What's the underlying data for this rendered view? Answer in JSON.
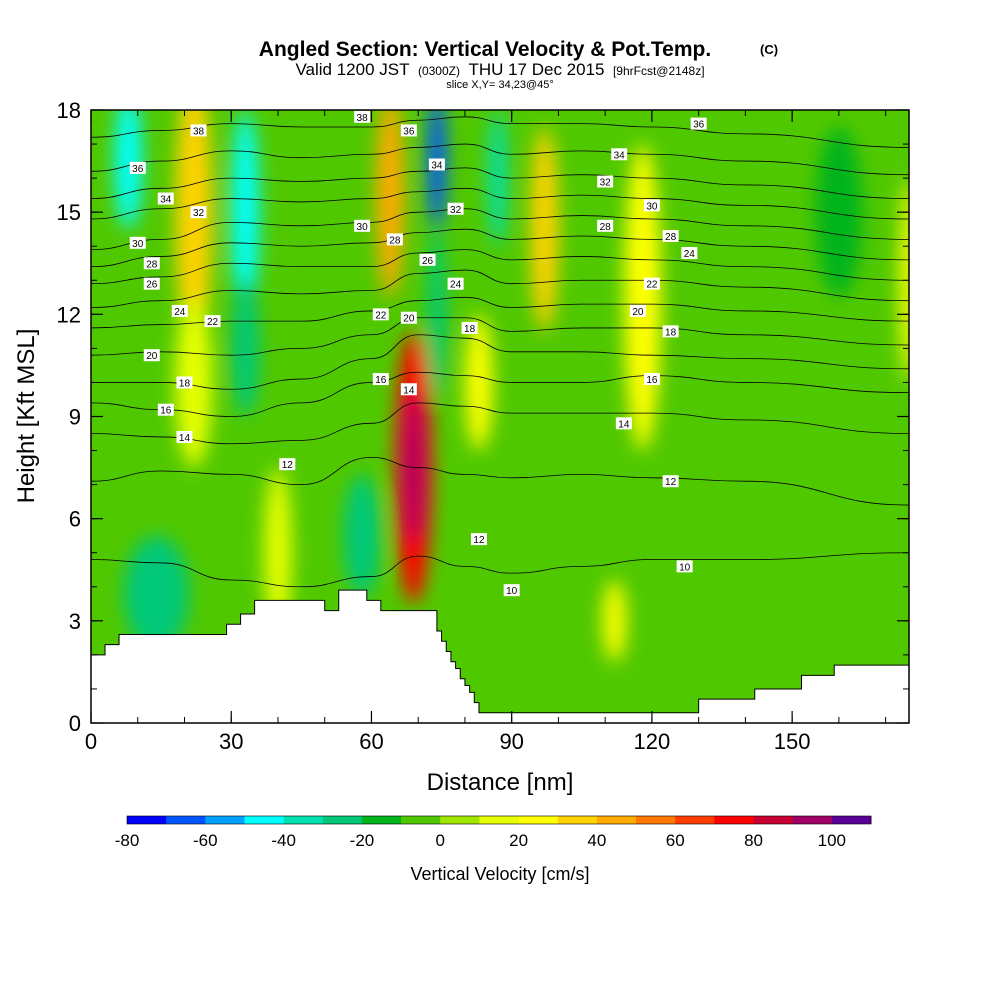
{
  "chart_data": {
    "type": "heatmap",
    "title": "Angled Section: Vertical Velocity & Pot.Temp.",
    "title_units": "(C)",
    "subtitle_prefix": "Valid 1200 JST",
    "subtitle_utc": "(0300Z)",
    "subtitle_date": "THU 17 Dec 2015",
    "subtitle_fcst": "[9hrFcst@2148z]",
    "slice_label": "slice X,Y= 34,23@45°",
    "xlabel": "Distance [nm]",
    "ylabel": "Height [Kft MSL]",
    "xlim": [
      0,
      175
    ],
    "ylim": [
      0,
      18
    ],
    "x_ticks": [
      0,
      30,
      60,
      90,
      120,
      150
    ],
    "y_ticks": [
      0,
      3,
      6,
      9,
      12,
      15,
      18
    ],
    "colorbar": {
      "title": "Vertical Velocity [cm/s]",
      "min": -80,
      "step": 10,
      "tick_labels": [
        "-80",
        "-60",
        "-40",
        "-20",
        "0",
        "20",
        "40",
        "60",
        "80",
        "100"
      ],
      "colors": [
        "#0000ff",
        "#0055ff",
        "#00a0ff",
        "#00ffff",
        "#00e0b0",
        "#00c878",
        "#00b41e",
        "#50c800",
        "#a0e600",
        "#e6ff00",
        "#ffff00",
        "#ffd200",
        "#ffaa00",
        "#ff7800",
        "#ff3c00",
        "#ff0000",
        "#c80032",
        "#a00064",
        "#5a0096"
      ]
    },
    "terrain_profile": {
      "x": [
        0,
        3,
        3,
        6,
        6,
        9,
        9,
        29,
        29,
        32,
        32,
        35,
        35,
        50,
        50,
        53,
        53,
        59,
        59,
        62,
        62,
        74,
        74,
        75,
        75,
        76,
        76,
        77,
        77,
        78,
        78,
        79,
        79,
        80,
        80,
        81,
        81,
        82,
        82,
        83,
        83,
        84,
        84,
        105,
        105,
        130,
        130,
        142,
        142,
        152,
        152,
        159,
        159,
        175
      ],
      "y_kft": [
        2.0,
        2.0,
        2.3,
        2.3,
        2.6,
        2.6,
        2.6,
        2.6,
        2.9,
        2.9,
        3.2,
        3.2,
        3.6,
        3.6,
        3.3,
        3.3,
        3.9,
        3.9,
        3.6,
        3.6,
        3.3,
        3.3,
        2.7,
        2.7,
        2.4,
        2.4,
        2.1,
        2.1,
        1.8,
        1.8,
        1.6,
        1.6,
        1.3,
        1.3,
        1.1,
        1.1,
        0.9,
        0.9,
        0.6,
        0.6,
        0.3,
        0.3,
        0.3,
        0.3,
        0.3,
        0.3,
        0.7,
        0.7,
        1.0,
        1.0,
        1.4,
        1.4,
        1.7,
        1.7
      ]
    },
    "vertical_velocity_features": [
      {
        "x": 8,
        "y_kft": 16.5,
        "x_half_width": 3,
        "y_half_height": 2,
        "value": -45
      },
      {
        "x": 22,
        "y_kft": 15,
        "x_half_width": 4,
        "y_half_height": 4,
        "value": 35
      },
      {
        "x": 22,
        "y_kft": 10,
        "x_half_width": 4,
        "y_half_height": 2.5,
        "value": 18
      },
      {
        "x": 33,
        "y_kft": 15,
        "x_half_width": 3,
        "y_half_height": 3,
        "value": -45
      },
      {
        "x": 33,
        "y_kft": 11,
        "x_half_width": 3,
        "y_half_height": 2,
        "value": -25
      },
      {
        "x": 40,
        "y_kft": 5,
        "x_half_width": 3,
        "y_half_height": 2.5,
        "value": 18
      },
      {
        "x": 14,
        "y_kft": 3.8,
        "x_half_width": 7,
        "y_half_height": 1.7,
        "value": -28
      },
      {
        "x": 58,
        "y_kft": 5.5,
        "x_half_width": 4,
        "y_half_height": 1.8,
        "value": -28
      },
      {
        "x": 64,
        "y_kft": 15.5,
        "x_half_width": 3,
        "y_half_height": 3,
        "value": 40
      },
      {
        "x": 69,
        "y_kft": 7.5,
        "x_half_width": 4,
        "y_half_height": 4,
        "value": 70
      },
      {
        "x": 69,
        "y_kft": 7.5,
        "x_half_width": 2,
        "y_half_height": 2.2,
        "value": 95
      },
      {
        "x": 74,
        "y_kft": 16.5,
        "x_half_width": 2,
        "y_half_height": 2,
        "value": -65
      },
      {
        "x": 74,
        "y_kft": 12,
        "x_half_width": 2,
        "y_half_height": 2.5,
        "value": -30
      },
      {
        "x": 83,
        "y_kft": 10,
        "x_half_width": 3,
        "y_half_height": 2,
        "value": 28
      },
      {
        "x": 87,
        "y_kft": 16,
        "x_half_width": 2,
        "y_half_height": 2,
        "value": -38
      },
      {
        "x": 97,
        "y_kft": 14.5,
        "x_half_width": 3,
        "y_half_height": 3,
        "value": 38
      },
      {
        "x": 112,
        "y_kft": 3,
        "x_half_width": 2.5,
        "y_half_height": 1.2,
        "value": 22
      },
      {
        "x": 118,
        "y_kft": 12.5,
        "x_half_width": 4,
        "y_half_height": 4.5,
        "value": 25
      },
      {
        "x": 160,
        "y_kft": 15,
        "x_half_width": 5,
        "y_half_height": 2.5,
        "value": -15
      },
      {
        "x": 175,
        "y_kft": 13,
        "x_half_width": 2,
        "y_half_height": 3,
        "value": 20
      }
    ],
    "theta_contours": [
      {
        "label": "10",
        "y_kft": [
          4.8,
          4.7,
          4.2,
          4.0,
          4.3,
          4.9,
          4.6,
          4.4,
          4.6,
          4.8,
          4.8,
          5.0
        ]
      },
      {
        "label": "12",
        "y_kft": [
          7.1,
          7.4,
          7.3,
          7.0,
          7.8,
          7.5,
          7.3,
          7.2,
          7.3,
          7.2,
          7.1,
          6.4
        ]
      },
      {
        "label": "14",
        "y_kft": [
          8.5,
          8.4,
          8.2,
          8.3,
          8.8,
          9.4,
          9.3,
          9.1,
          9.1,
          9.1,
          8.9,
          8.5
        ]
      },
      {
        "label": "16",
        "y_kft": [
          9.4,
          9.2,
          9.0,
          9.4,
          10.0,
          10.3,
          10.2,
          10.0,
          10.0,
          10.2,
          10.0,
          9.7
        ]
      },
      {
        "label": "18",
        "y_kft": [
          10.0,
          10.0,
          9.8,
          10.1,
          10.7,
          11.4,
          11.3,
          10.9,
          10.9,
          10.8,
          10.7,
          10.4
        ]
      },
      {
        "label": "20",
        "y_kft": [
          10.8,
          10.9,
          10.8,
          11.0,
          11.4,
          11.9,
          11.9,
          11.5,
          11.6,
          11.6,
          11.4,
          11.1
        ]
      },
      {
        "label": "22",
        "y_kft": [
          11.6,
          11.7,
          11.8,
          11.8,
          12.1,
          12.4,
          12.5,
          12.2,
          12.3,
          12.3,
          12.1,
          11.8
        ]
      },
      {
        "label": "24",
        "y_kft": [
          12.2,
          12.4,
          12.7,
          12.6,
          12.7,
          13.2,
          13.3,
          12.9,
          13.0,
          13.0,
          12.8,
          12.4
        ]
      },
      {
        "label": "26",
        "y_kft": [
          12.9,
          13.1,
          13.5,
          13.4,
          13.4,
          13.8,
          13.9,
          13.6,
          13.7,
          13.6,
          13.4,
          13.0
        ]
      },
      {
        "label": "28",
        "y_kft": [
          13.4,
          13.7,
          14.1,
          14.0,
          14.1,
          14.4,
          14.5,
          14.2,
          14.3,
          14.2,
          14.0,
          13.6
        ]
      },
      {
        "label": "30",
        "y_kft": [
          13.9,
          14.2,
          14.7,
          14.6,
          14.7,
          15.0,
          15.1,
          14.8,
          14.9,
          14.8,
          14.6,
          14.2
        ]
      },
      {
        "label": "32",
        "y_kft": [
          14.8,
          15.1,
          15.4,
          15.3,
          15.4,
          15.6,
          15.7,
          15.4,
          15.5,
          15.4,
          15.2,
          14.8
        ]
      },
      {
        "label": "34",
        "y_kft": [
          15.4,
          15.7,
          16.0,
          15.9,
          16.0,
          16.2,
          16.3,
          16.0,
          16.1,
          16.0,
          15.8,
          15.4
        ]
      },
      {
        "label": "36",
        "y_kft": [
          16.2,
          16.5,
          16.8,
          16.6,
          16.7,
          16.9,
          17.0,
          16.7,
          16.8,
          16.7,
          16.5,
          16.1
        ]
      },
      {
        "label": "38",
        "y_kft": [
          17.2,
          17.4,
          17.6,
          17.5,
          17.5,
          17.7,
          17.8,
          17.6,
          17.6,
          17.5,
          17.3,
          16.9
        ]
      }
    ],
    "theta_contour_x": [
      0,
      15,
      30,
      45,
      60,
      70,
      80,
      90,
      105,
      120,
      140,
      175
    ],
    "contour_labels": [
      {
        "text": "38",
        "x": 23,
        "y_kft": 17.4
      },
      {
        "text": "38",
        "x": 58,
        "y_kft": 17.8
      },
      {
        "text": "36",
        "x": 68,
        "y_kft": 17.4
      },
      {
        "text": "36",
        "x": 130,
        "y_kft": 17.6
      },
      {
        "text": "36",
        "x": 10,
        "y_kft": 16.3
      },
      {
        "text": "34",
        "x": 16,
        "y_kft": 15.4
      },
      {
        "text": "34",
        "x": 74,
        "y_kft": 16.4
      },
      {
        "text": "34",
        "x": 113,
        "y_kft": 16.7
      },
      {
        "text": "32",
        "x": 23,
        "y_kft": 15.0
      },
      {
        "text": "32",
        "x": 78,
        "y_kft": 15.1
      },
      {
        "text": "32",
        "x": 110,
        "y_kft": 15.9
      },
      {
        "text": "30",
        "x": 10,
        "y_kft": 14.1
      },
      {
        "text": "30",
        "x": 58,
        "y_kft": 14.6
      },
      {
        "text": "30",
        "x": 120,
        "y_kft": 15.2
      },
      {
        "text": "28",
        "x": 13,
        "y_kft": 13.5
      },
      {
        "text": "28",
        "x": 65,
        "y_kft": 14.2
      },
      {
        "text": "28",
        "x": 110,
        "y_kft": 14.6
      },
      {
        "text": "28",
        "x": 124,
        "y_kft": 14.3
      },
      {
        "text": "26",
        "x": 13,
        "y_kft": 12.9
      },
      {
        "text": "26",
        "x": 72,
        "y_kft": 13.6
      },
      {
        "text": "24",
        "x": 78,
        "y_kft": 12.9
      },
      {
        "text": "24",
        "x": 128,
        "y_kft": 13.8
      },
      {
        "text": "24",
        "x": 19,
        "y_kft": 12.1
      },
      {
        "text": "22",
        "x": 26,
        "y_kft": 11.8
      },
      {
        "text": "22",
        "x": 62,
        "y_kft": 12.0
      },
      {
        "text": "22",
        "x": 120,
        "y_kft": 12.9
      },
      {
        "text": "20",
        "x": 68,
        "y_kft": 11.9
      },
      {
        "text": "20",
        "x": 13,
        "y_kft": 10.8
      },
      {
        "text": "20",
        "x": 117,
        "y_kft": 12.1
      },
      {
        "text": "18",
        "x": 81,
        "y_kft": 11.6
      },
      {
        "text": "18",
        "x": 20,
        "y_kft": 10.0
      },
      {
        "text": "18",
        "x": 124,
        "y_kft": 11.5
      },
      {
        "text": "16",
        "x": 62,
        "y_kft": 10.1
      },
      {
        "text": "16",
        "x": 16,
        "y_kft": 9.2
      },
      {
        "text": "16",
        "x": 120,
        "y_kft": 10.1
      },
      {
        "text": "14",
        "x": 68,
        "y_kft": 9.8
      },
      {
        "text": "14",
        "x": 20,
        "y_kft": 8.4
      },
      {
        "text": "14",
        "x": 114,
        "y_kft": 8.8
      },
      {
        "text": "12",
        "x": 42,
        "y_kft": 7.6
      },
      {
        "text": "12",
        "x": 124,
        "y_kft": 7.1
      },
      {
        "text": "12",
        "x": 83,
        "y_kft": 5.4
      },
      {
        "text": "10",
        "x": 90,
        "y_kft": 3.9
      },
      {
        "text": "10",
        "x": 127,
        "y_kft": 4.6
      }
    ]
  }
}
